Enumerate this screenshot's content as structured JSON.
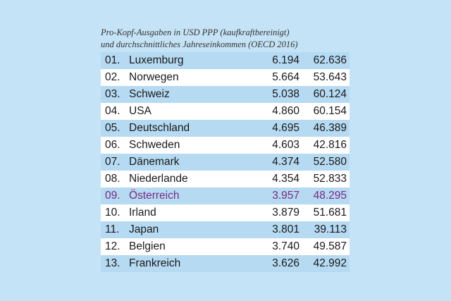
{
  "caption": {
    "line1": "Pro-Kopf-Ausgaben in USD PPP (kaufkraftbereinigt)",
    "line2": "und durchschnittliches Jahreseinkommen (OECD 2016)"
  },
  "colors": {
    "background": "#c5e3f6",
    "row_shaded": "#b5daf2",
    "row_plain": "#ffffff",
    "highlight_text": "#7b2a82"
  },
  "rows": [
    {
      "rank": "01.",
      "country": "Luxemburg",
      "spending": "6.194",
      "income": "62.636",
      "highlight": false
    },
    {
      "rank": "02.",
      "country": "Norwegen",
      "spending": "5.664",
      "income": "53.643",
      "highlight": false
    },
    {
      "rank": "03.",
      "country": "Schweiz",
      "spending": "5.038",
      "income": "60.124",
      "highlight": false
    },
    {
      "rank": "04.",
      "country": "USA",
      "spending": "4.860",
      "income": "60.154",
      "highlight": false
    },
    {
      "rank": "05.",
      "country": "Deutschland",
      "spending": "4.695",
      "income": "46.389",
      "highlight": false
    },
    {
      "rank": "06.",
      "country": "Schweden",
      "spending": "4.603",
      "income": "42.816",
      "highlight": false
    },
    {
      "rank": "07.",
      "country": "Dänemark",
      "spending": "4.374",
      "income": "52.580",
      "highlight": false
    },
    {
      "rank": "08.",
      "country": "Niederlande",
      "spending": "4.354",
      "income": "52.833",
      "highlight": false
    },
    {
      "rank": "09.",
      "country": "Österreich",
      "spending": "3.957",
      "income": "48.295",
      "highlight": true
    },
    {
      "rank": "10.",
      "country": "Irland",
      "spending": "3.879",
      "income": "51.681",
      "highlight": false
    },
    {
      "rank": "11.",
      "country": "Japan",
      "spending": "3.801",
      "income": "39.113",
      "highlight": false
    },
    {
      "rank": "12.",
      "country": "Belgien",
      "spending": "3.740",
      "income": "49.587",
      "highlight": false
    },
    {
      "rank": "13.",
      "country": "Frankreich",
      "spending": "3.626",
      "income": "42.992",
      "highlight": false
    }
  ]
}
